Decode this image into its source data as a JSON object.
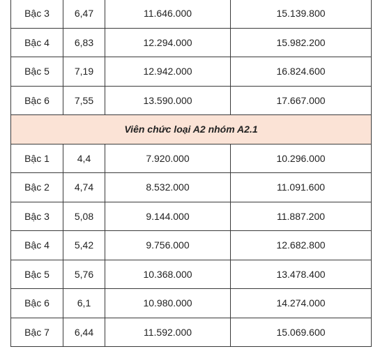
{
  "table": {
    "rows_before": [
      {
        "level": "Bậc 3",
        "coefficient": "6,47",
        "salary_2023": "11.646.000",
        "salary_2024": "15.139.800"
      },
      {
        "level": "Bậc 4",
        "coefficient": "6,83",
        "salary_2023": "12.294.000",
        "salary_2024": "15.982.200"
      },
      {
        "level": "Bậc 5",
        "coefficient": "7,19",
        "salary_2023": "12.942.000",
        "salary_2024": "16.824.600"
      },
      {
        "level": "Bậc 6",
        "coefficient": "7,55",
        "salary_2023": "13.590.000",
        "salary_2024": "17.667.000"
      }
    ],
    "group_heading": "Viên chức loại A2 nhóm A2.1",
    "rows_after": [
      {
        "level": "Bậc 1",
        "coefficient": "4,4",
        "salary_2023": "7.920.000",
        "salary_2024": "10.296.000"
      },
      {
        "level": "Bậc 2",
        "coefficient": "4,74",
        "salary_2023": "8.532.000",
        "salary_2024": "11.091.600"
      },
      {
        "level": "Bậc 3",
        "coefficient": "5,08",
        "salary_2023": "9.144.000",
        "salary_2024": "11.887.200"
      },
      {
        "level": "Bậc 4",
        "coefficient": "5,42",
        "salary_2023": "9.756.000",
        "salary_2024": "12.682.800"
      },
      {
        "level": "Bậc 5",
        "coefficient": "5,76",
        "salary_2023": "10.368.000",
        "salary_2024": "13.478.400"
      },
      {
        "level": "Bậc 6",
        "coefficient": "6,1",
        "salary_2023": "10.980.000",
        "salary_2024": "14.274.000"
      },
      {
        "level": "Bậc 7",
        "coefficient": "6,44",
        "salary_2023": "11.592.000",
        "salary_2024": "15.069.600"
      }
    ]
  },
  "colors": {
    "group_heading_background": "#fbe3d6",
    "border": "#3a3a3a",
    "text": "#222222"
  }
}
